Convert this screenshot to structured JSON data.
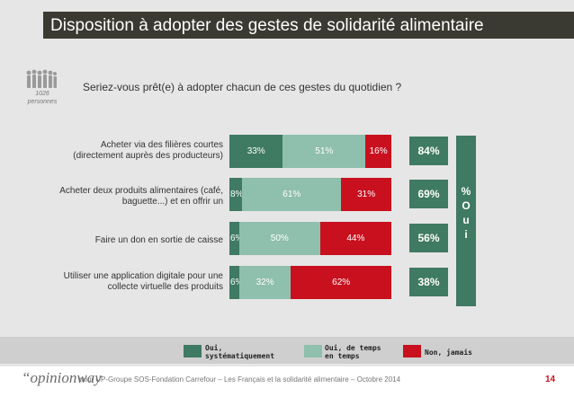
{
  "title": "Disposition à adopter des gestes de solidarité alimentaire",
  "sample": {
    "count": "1026",
    "unit": "personnes"
  },
  "question": "Seriez-vous prêt(e) à adopter chacun de ces gestes du quotidien ?",
  "oui_label": "% O u i",
  "legend": {
    "systematic": "Oui, systématiquement",
    "sometimes": "Oui, de temps en temps",
    "never": "Non, jamais"
  },
  "colors": {
    "systematic": "#3f7a62",
    "sometimes": "#8fbfad",
    "never": "#c8101e"
  },
  "footer": {
    "brand": "“opinionway",
    "note": "pour UP-Groupe SOS-Fondation Carrefour – Les Français et la solidarité alimentaire – Octobre 2014",
    "page": "14"
  },
  "chart_data": {
    "type": "bar",
    "orientation": "horizontal",
    "stacked": true,
    "title": "Seriez-vous prêt(e) à adopter chacun de ces gestes du quotidien ?",
    "categories": [
      "Acheter via des filières courtes (directement auprès des producteurs)",
      "Acheter deux produits alimentaires (café, baguette...) et en offrir un",
      "Faire un don en sortie de caisse",
      "Utiliser une application digitale pour une collecte virtuelle des produits"
    ],
    "series": [
      {
        "name": "Oui, systématiquement",
        "values": [
          33,
          8,
          6,
          6
        ]
      },
      {
        "name": "Oui, de temps en temps",
        "values": [
          51,
          61,
          50,
          32
        ]
      },
      {
        "name": "Non, jamais",
        "values": [
          16,
          31,
          44,
          62
        ]
      }
    ],
    "total_oui": [
      84,
      69,
      56,
      38
    ],
    "unit": "%",
    "xlim": [
      0,
      100
    ]
  }
}
